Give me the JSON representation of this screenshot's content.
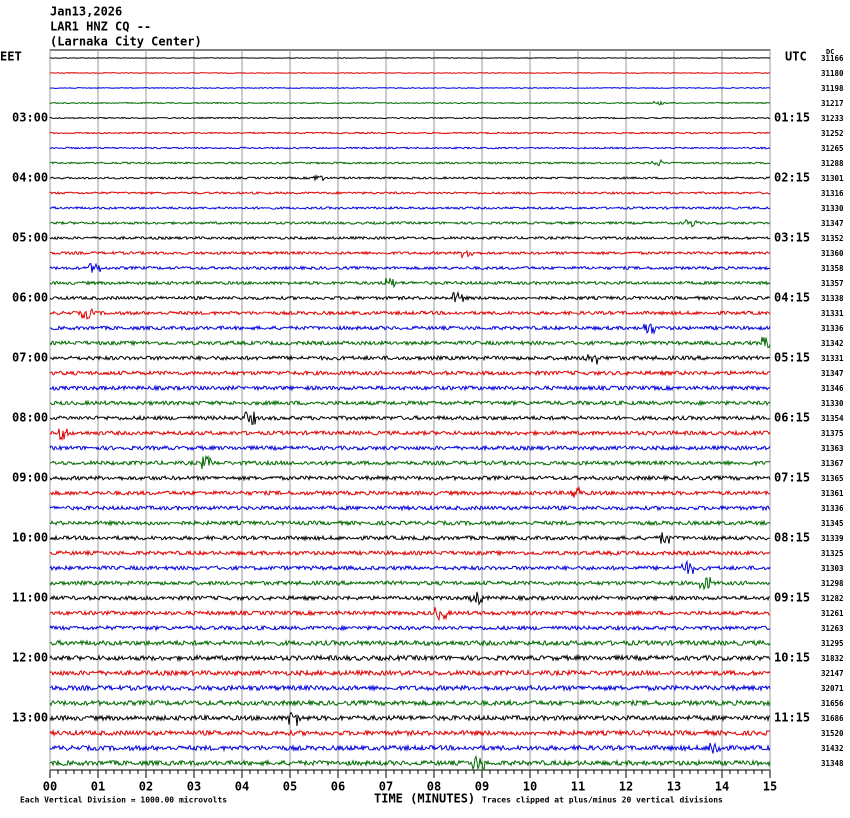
{
  "header": {
    "date": "Jan13,2026",
    "station": "LAR1 HNZ CQ --",
    "location": "(Larnaka City Center)"
  },
  "left_axis": {
    "title": "EET",
    "labels": [
      "03:00",
      "04:00",
      "05:00",
      "06:00",
      "07:00",
      "08:00",
      "09:00",
      "10:00",
      "11:00",
      "12:00",
      "13:00"
    ]
  },
  "right_axis": {
    "title": "UTC",
    "labels": [
      "01:15",
      "02:15",
      "03:15",
      "04:15",
      "05:15",
      "06:15",
      "07:15",
      "08:15",
      "09:15",
      "10:15",
      "11:15"
    ]
  },
  "dc": {
    "title": "DC",
    "values": [
      "31166",
      "31180",
      "31198",
      "31217",
      "31233",
      "31252",
      "31265",
      "31288",
      "31301",
      "31316",
      "31330",
      "31347",
      "31352",
      "31360",
      "31358",
      "31357",
      "31338",
      "31331",
      "31336",
      "31342",
      "31331",
      "31347",
      "31346",
      "31330",
      "31354",
      "31375",
      "31363",
      "31367",
      "31365",
      "31361",
      "31336",
      "31345",
      "31339",
      "31325",
      "31303",
      "31298",
      "31282",
      "31261",
      "31263",
      "31295",
      "31832",
      "32147",
      "32071",
      "31656",
      "31686",
      "31520",
      "31432",
      "31348"
    ]
  },
  "x_axis": {
    "title": "TIME (MINUTES)",
    "ticks": [
      "00",
      "01",
      "02",
      "03",
      "04",
      "05",
      "06",
      "07",
      "08",
      "09",
      "10",
      "11",
      "12",
      "13",
      "14",
      "15"
    ]
  },
  "footer": {
    "scale_note": "Each Vertical Division = 1000.00 microvolts",
    "clip_note": "Traces clipped at plus/minus 20 vertical divisions"
  }
}
